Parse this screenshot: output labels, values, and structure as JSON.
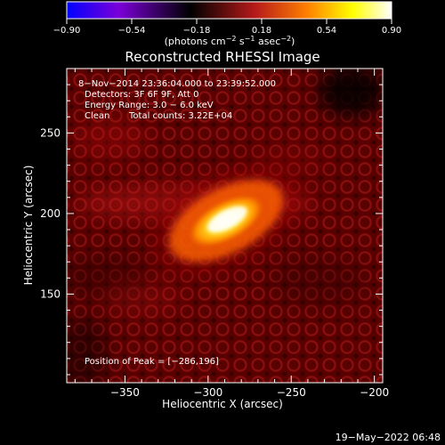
{
  "chart_data": {
    "type": "heatmap",
    "title": "Reconstructed RHESSI Image",
    "xlabel": "Heliocentric X (arcsec)",
    "ylabel": "Heliocentric Y (arcsec)",
    "xlim": [
      -385,
      -195
    ],
    "ylim": [
      95,
      290
    ],
    "x_ticks": [
      -350,
      -300,
      -250,
      -200
    ],
    "y_ticks": [
      150,
      200,
      250
    ],
    "x_tick_labels": [
      "−350",
      "−300",
      "−250",
      "−200"
    ],
    "y_tick_labels": [
      "150",
      "200",
      "250"
    ],
    "colorbar": {
      "range": [
        -0.9,
        0.9
      ],
      "ticks": [
        -0.9,
        -0.54,
        -0.18,
        0.18,
        0.54,
        0.9
      ],
      "tick_labels": [
        "−0.90",
        "−0.54",
        "−0.18",
        "0.18",
        "0.54",
        "0.90"
      ],
      "label_main": "(photons cm",
      "label_exp1": "−2",
      "label_mid": " s",
      "label_exp2": "−1",
      "label_mid2": " asec",
      "label_exp3": "−2",
      "label_end": ")",
      "colors": [
        "#0000ff",
        "#7b00d8",
        "#000000",
        "#b61a1a",
        "#ff8000",
        "#ffff00",
        "#ffffff"
      ]
    },
    "annotations": {
      "line1": "8−Nov−2014 23:36:04.000 to 23:39:52.000",
      "line2": "Detectors: 3F 6F 9F, Att 0",
      "line3": "Energy Range: 3.0 − 6.0 keV",
      "line4_left": "Clean",
      "line4_right": "Total counts: 3.22E+04",
      "peak": "Position of Peak = [−286,196]"
    },
    "peak": [
      -286,
      196
    ],
    "source_model": {
      "peak_value": 0.9,
      "major_axis_arcsec": 24,
      "minor_axis_arcsec": 13,
      "orientation_deg": 28
    }
  },
  "footer": {
    "date": "19−May−2022 06:48"
  }
}
